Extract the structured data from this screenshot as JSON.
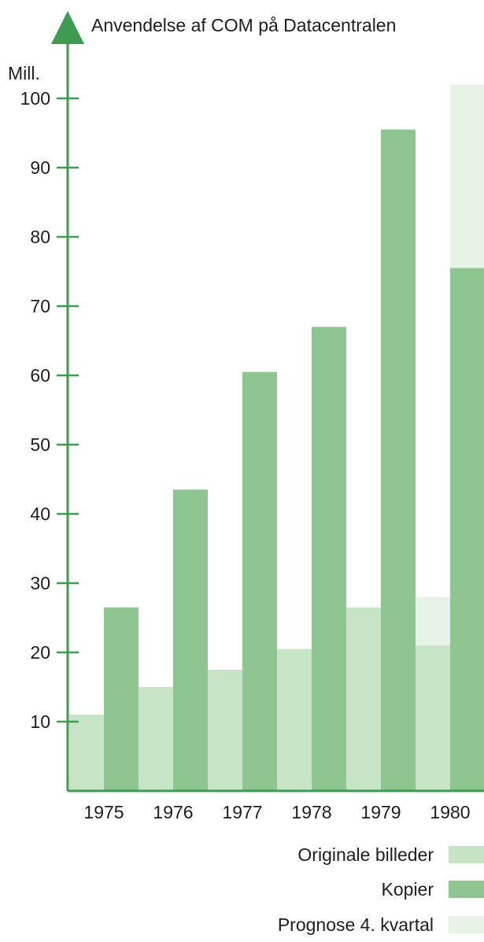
{
  "chart_data": {
    "type": "bar",
    "title": "Anvendelse af COM på Datacentralen",
    "ylabel": "Mill.",
    "xlabel": "",
    "ylim": [
      0,
      100
    ],
    "yticks": [
      10,
      20,
      30,
      40,
      50,
      60,
      70,
      80,
      90,
      100
    ],
    "grid": false,
    "categories": [
      "1975",
      "1976",
      "1977",
      "1978",
      "1979",
      "1980"
    ],
    "series": [
      {
        "name": "Originale billeder",
        "values": [
          11,
          15,
          17.5,
          20.5,
          26.5,
          21
        ]
      },
      {
        "name": "Kopier",
        "values": [
          26.5,
          43.5,
          60.5,
          67,
          95.5,
          75.5
        ]
      },
      {
        "name": "Prognose 4. kvartal",
        "values": [
          null,
          null,
          null,
          null,
          null,
          28
        ],
        "stacked_on": "Originale billeder"
      },
      {
        "name": "Prognose 4. kvartal",
        "values": [
          null,
          null,
          null,
          null,
          null,
          102
        ],
        "stacked_on": "Kopier"
      }
    ],
    "legend": {
      "position": "bottom-right",
      "items": [
        "Originale billeder",
        "Kopier",
        "Prognose 4. kvartal"
      ]
    },
    "colors": {
      "axis": "#3f9a52",
      "originale": "#c7e4c6",
      "kopier": "#8ec591",
      "prognose": "#e8f3e8"
    }
  }
}
